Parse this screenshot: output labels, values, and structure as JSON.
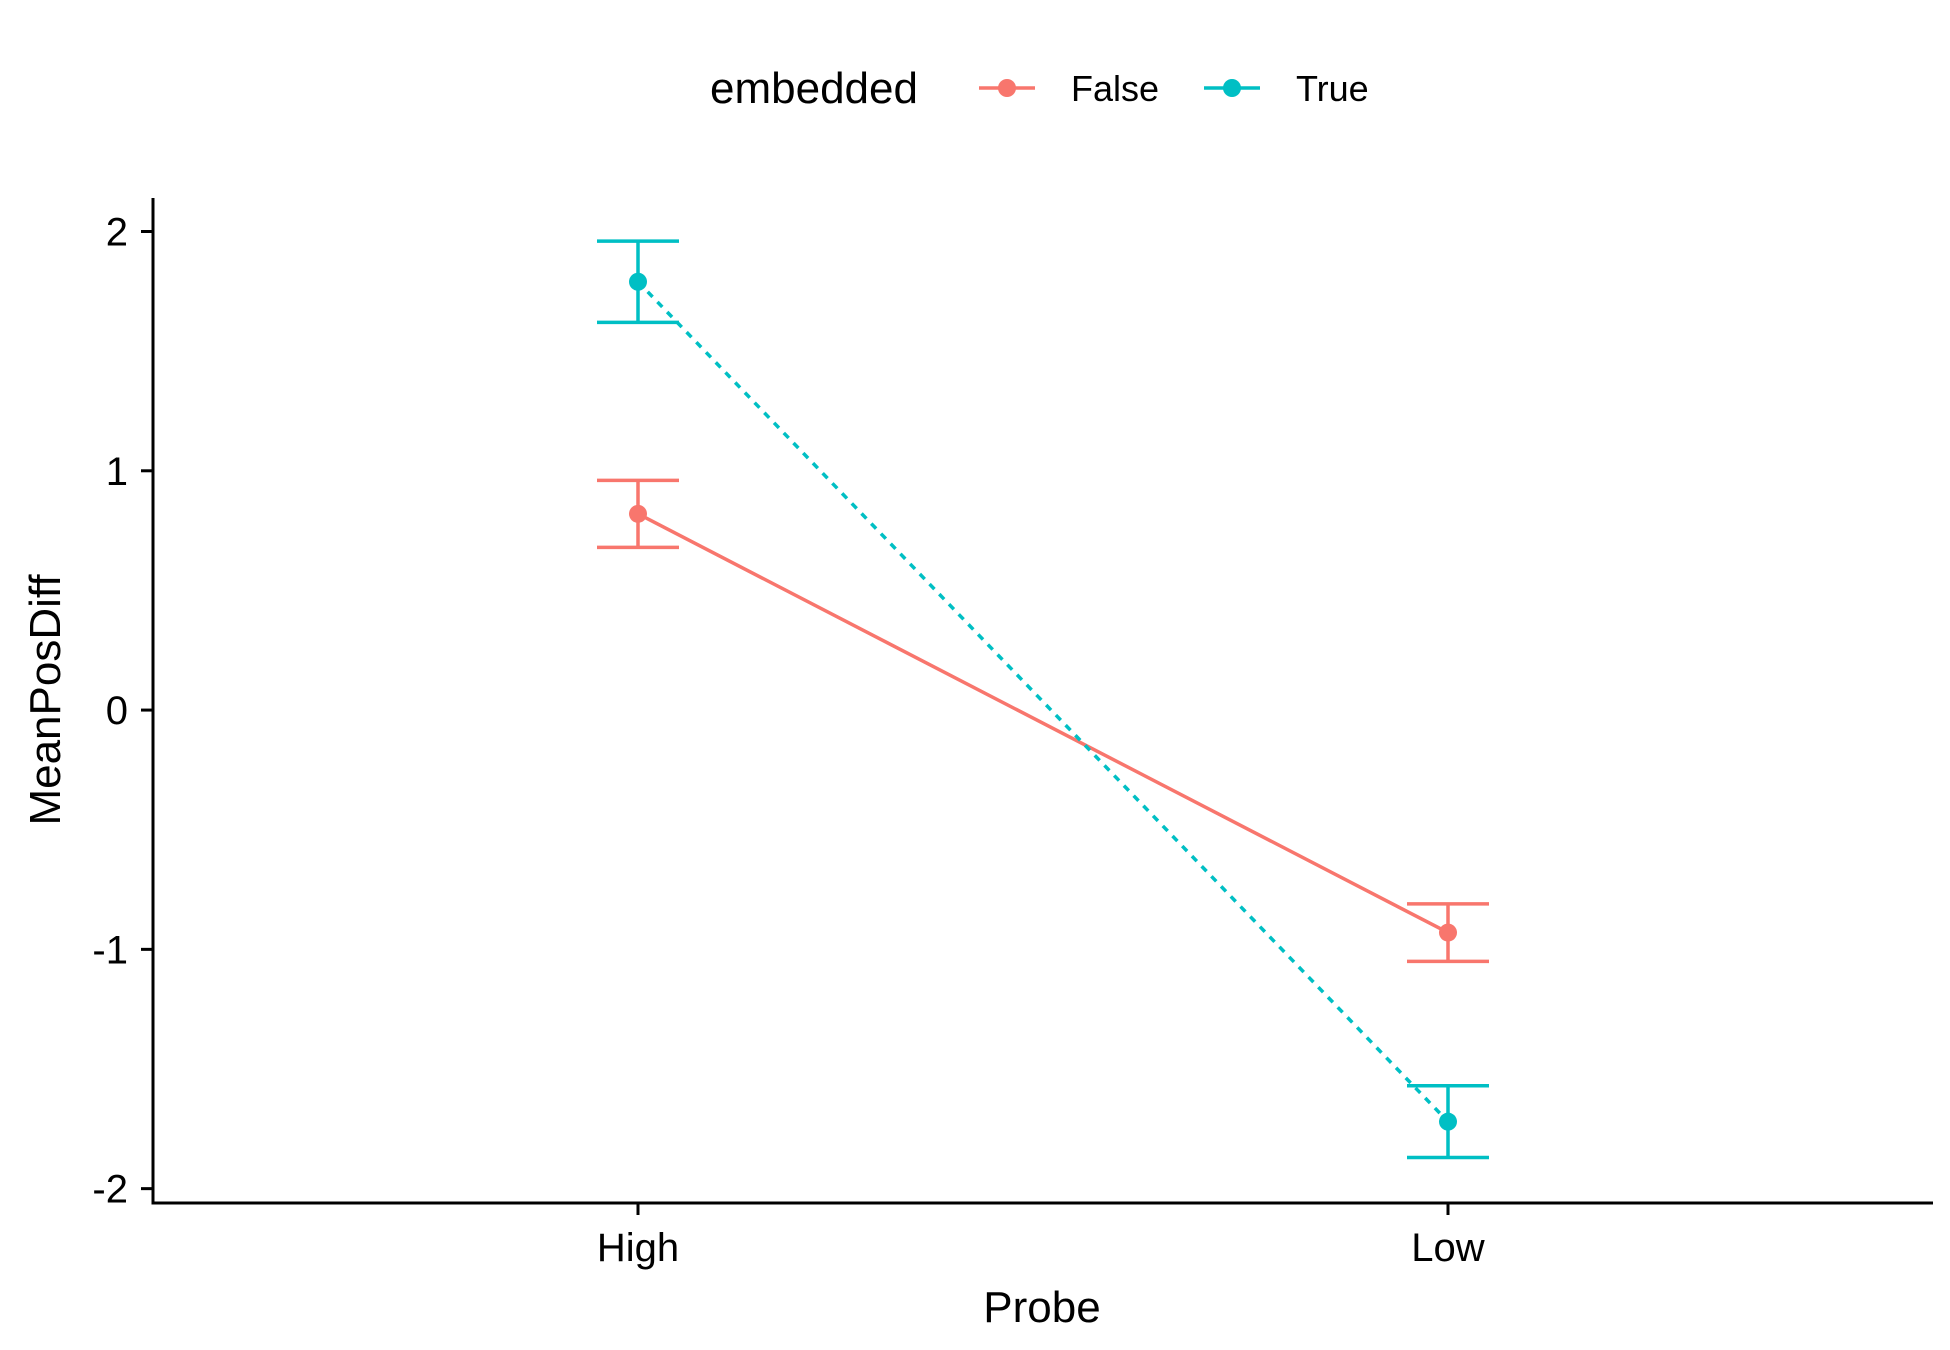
{
  "chart_data": {
    "type": "line",
    "title": "",
    "xlabel": "Probe",
    "ylabel": "MeanPosDiff",
    "categories": [
      "High",
      "Low"
    ],
    "ylim": [
      -2.06,
      2.14
    ],
    "yticks": [
      2,
      1,
      0,
      -1,
      -2
    ],
    "ytick_labels": [
      "2",
      "1",
      "0",
      "-1",
      "-2"
    ],
    "grid": false,
    "legend": {
      "title": "embedded",
      "position": "top"
    },
    "series": [
      {
        "name": "False",
        "color": "#F8766D",
        "line_style": "solid",
        "values": [
          0.82,
          -0.93
        ],
        "error_low": [
          0.68,
          -1.05
        ],
        "error_high": [
          0.96,
          -0.81
        ]
      },
      {
        "name": "True",
        "color": "#00BFC4",
        "line_style": "dotted",
        "values": [
          1.79,
          -1.72
        ],
        "error_low": [
          1.62,
          -1.87
        ],
        "error_high": [
          1.96,
          -1.57
        ]
      }
    ]
  }
}
